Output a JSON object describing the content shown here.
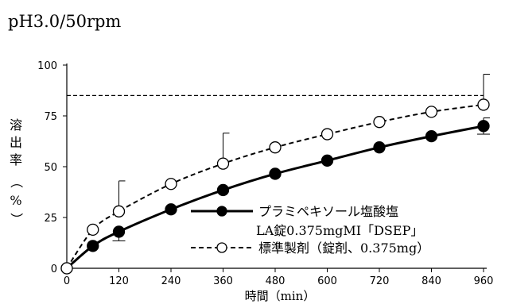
{
  "chart_data": {
    "type": "line",
    "title": "pH3.0/50rpm",
    "xlabel": "時間（min）",
    "ylabel": "溶出率（%）",
    "ylabel_chars": [
      "溶",
      "出",
      "率",
      "（",
      "%",
      "）"
    ],
    "xlim": [
      0,
      960
    ],
    "ylim": [
      0,
      100
    ],
    "xticks": [
      0,
      120,
      240,
      360,
      480,
      600,
      720,
      840,
      960
    ],
    "yticks": [
      0,
      25,
      50,
      75,
      100
    ],
    "grid": false,
    "legend_position": "right",
    "reference_line": {
      "y": 85,
      "style": "dashed"
    },
    "series": [
      {
        "name": "プラミペキソール塩酸塩 LA錠0.375mgMI「DSEP」",
        "name_lines": [
          "プラミペキソール塩酸塩",
          "LA錠0.375mgMI「DSEP」"
        ],
        "marker": "filled-circle",
        "line_style": "solid",
        "x": [
          0,
          60,
          120,
          240,
          360,
          480,
          600,
          720,
          840,
          960
        ],
        "y": [
          0,
          11,
          18,
          29,
          38.5,
          46.5,
          53,
          59.5,
          65,
          70
        ],
        "error": [
          0,
          0,
          4.5,
          0,
          0,
          0,
          0,
          0,
          0,
          4
        ]
      },
      {
        "name": "標準製剤（錠剤、0.375mg）",
        "name_lines": [
          "標準製剤（錠剤、0.375mg）"
        ],
        "marker": "open-circle",
        "line_style": "dashed",
        "x": [
          0,
          60,
          120,
          240,
          360,
          480,
          600,
          720,
          840,
          960
        ],
        "y": [
          0,
          19,
          28,
          41.5,
          51.5,
          59.5,
          66,
          72,
          77,
          80.5
        ],
        "error": [
          0,
          0,
          15,
          0,
          15,
          0,
          0,
          0,
          0,
          15
        ]
      }
    ]
  }
}
